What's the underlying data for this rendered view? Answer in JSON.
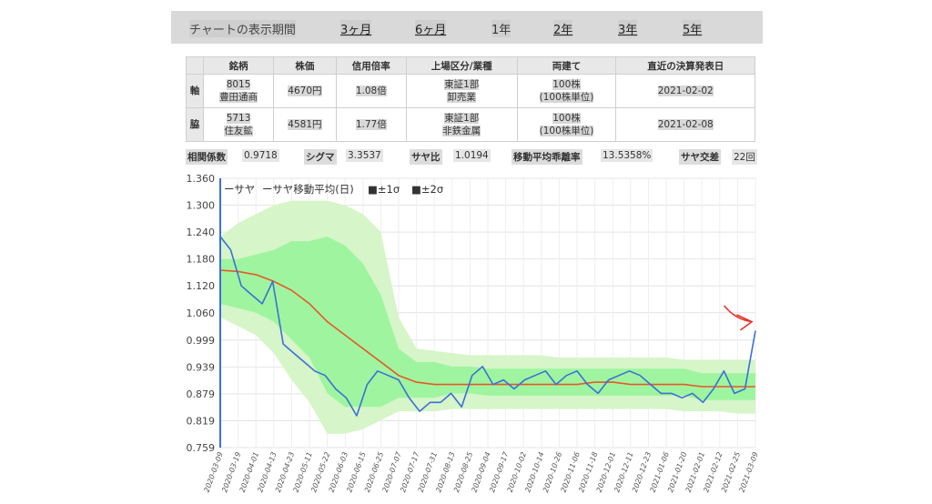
{
  "period_bar": {
    "label": "チャートの表示期間",
    "options": [
      "3ヶ月",
      "6ヶ月",
      "1年",
      "2年",
      "3年",
      "5年"
    ]
  },
  "info_table": {
    "headers": [
      "銘柄",
      "株価",
      "信用倍率",
      "上場区分/業種",
      "両建て",
      "直近の決算発表日"
    ],
    "rows": [
      {
        "tag": "軸",
        "code": "8015",
        "name": "豊田通商",
        "price": "4670円",
        "ratio": "1.08倍",
        "market": "東証1部",
        "sector": "卸売業",
        "unit1": "100株",
        "unit2": "(100株単位)",
        "date": "2021-02-02"
      },
      {
        "tag": "脇",
        "code": "5713",
        "name": "住友鉱",
        "price": "4581円",
        "ratio": "1.77倍",
        "market": "東証1部",
        "sector": "非鉄金属",
        "unit1": "100株",
        "unit2": "(100株単位)",
        "date": "2021-02-08"
      }
    ]
  },
  "stats": [
    {
      "key": "相関係数",
      "value": "0.9718"
    },
    {
      "key": "シグマ",
      "value": "3.3537"
    },
    {
      "key": "サヤ比",
      "value": "1.0194"
    },
    {
      "key": "移動平均乖離率",
      "value": "13.5358%"
    },
    {
      "key": "サヤ交差",
      "value": "22回"
    }
  ],
  "chart_data": {
    "type": "line",
    "legend": [
      "ーサヤ",
      "ーサヤ移動平均(日)",
      "■±1σ",
      "■±2σ"
    ],
    "y_ticks": [
      "1.360",
      "1.300",
      "1.240",
      "1.180",
      "1.120",
      "1.060",
      "0.999",
      "0.939",
      "0.879",
      "0.819",
      "0.759"
    ],
    "ylim": [
      0.759,
      1.36
    ],
    "x_ticks": [
      "2020-03-09",
      "2020-03-19",
      "2020-04-01",
      "2020-04-13",
      "2020-04-23",
      "2020-05-11",
      "2020-05-22",
      "2020-06-03",
      "2020-06-15",
      "2020-06-25",
      "2020-07-07",
      "2020-07-17",
      "2020-07-31",
      "2020-08-13",
      "2020-08-25",
      "2020-09-04",
      "2020-09-17",
      "2020-10-02",
      "2020-10-14",
      "2020-10-26",
      "2020-11-06",
      "2020-11-18",
      "2020-12-01",
      "2020-12-11",
      "2020-12-23",
      "2021-01-06",
      "2021-01-20",
      "2021-02-01",
      "2021-02-12",
      "2021-02-25",
      "2021-03-09"
    ],
    "series": [
      {
        "name": "サヤ",
        "values": [
          1.23,
          1.2,
          1.12,
          1.1,
          1.08,
          1.13,
          0.99,
          0.97,
          0.95,
          0.93,
          0.92,
          0.89,
          0.87,
          0.83,
          0.9,
          0.93,
          0.92,
          0.91,
          0.87,
          0.84,
          0.86,
          0.86,
          0.88,
          0.85,
          0.92,
          0.94,
          0.9,
          0.91,
          0.89,
          0.91,
          0.92,
          0.93,
          0.9,
          0.92,
          0.93,
          0.9,
          0.88,
          0.91,
          0.92,
          0.93,
          0.92,
          0.9,
          0.88,
          0.88,
          0.87,
          0.88,
          0.86,
          0.89,
          0.93,
          0.88,
          0.89,
          1.02
        ]
      },
      {
        "name": "サヤ移動平均(日)",
        "values": [
          1.155,
          1.152,
          1.145,
          1.13,
          1.11,
          1.08,
          1.04,
          1.01,
          0.98,
          0.95,
          0.92,
          0.905,
          0.9,
          0.9,
          0.9,
          0.9,
          0.9,
          0.9,
          0.9,
          0.9,
          0.9,
          0.905,
          0.905,
          0.9,
          0.9,
          0.9,
          0.9,
          0.895,
          0.895,
          0.895,
          0.895
        ]
      },
      {
        "name": "±1σ",
        "values_upper": [
          1.18,
          1.18,
          1.19,
          1.2,
          1.22,
          1.22,
          1.23,
          1.21,
          1.17,
          1.1,
          0.98,
          0.95,
          0.95,
          0.94,
          0.94,
          0.935,
          0.935,
          0.935,
          0.935,
          0.935,
          0.935,
          0.935,
          0.935,
          0.935,
          0.935,
          0.935,
          0.935,
          0.925,
          0.925,
          0.925,
          0.925
        ],
        "values_lower": [
          1.08,
          1.07,
          1.06,
          1.04,
          1.0,
          0.96,
          0.88,
          0.85,
          0.85,
          0.85,
          0.87,
          0.87,
          0.87,
          0.88,
          0.88,
          0.875,
          0.875,
          0.875,
          0.875,
          0.875,
          0.875,
          0.875,
          0.875,
          0.875,
          0.875,
          0.875,
          0.875,
          0.865,
          0.865,
          0.865,
          0.865
        ]
      },
      {
        "name": "±2σ",
        "values_upper": [
          1.23,
          1.26,
          1.28,
          1.3,
          1.31,
          1.31,
          1.31,
          1.3,
          1.28,
          1.24,
          1.05,
          0.98,
          0.975,
          0.97,
          0.965,
          0.965,
          0.965,
          0.965,
          0.965,
          0.96,
          0.96,
          0.96,
          0.96,
          0.96,
          0.96,
          0.96,
          0.955,
          0.955,
          0.955,
          0.955,
          0.955
        ],
        "values_lower": [
          1.05,
          1.03,
          1.01,
          0.97,
          0.91,
          0.86,
          0.79,
          0.79,
          0.8,
          0.82,
          0.84,
          0.84,
          0.84,
          0.845,
          0.845,
          0.845,
          0.845,
          0.845,
          0.845,
          0.845,
          0.845,
          0.845,
          0.845,
          0.845,
          0.845,
          0.845,
          0.84,
          0.84,
          0.84,
          0.835,
          0.835
        ]
      }
    ],
    "colors": {
      "saya": "#3b6fd8",
      "ma": "#e8562a",
      "sigma1": "#9ff59f",
      "sigma2": "#d6f5c8",
      "annotation": "#e8332a"
    }
  }
}
